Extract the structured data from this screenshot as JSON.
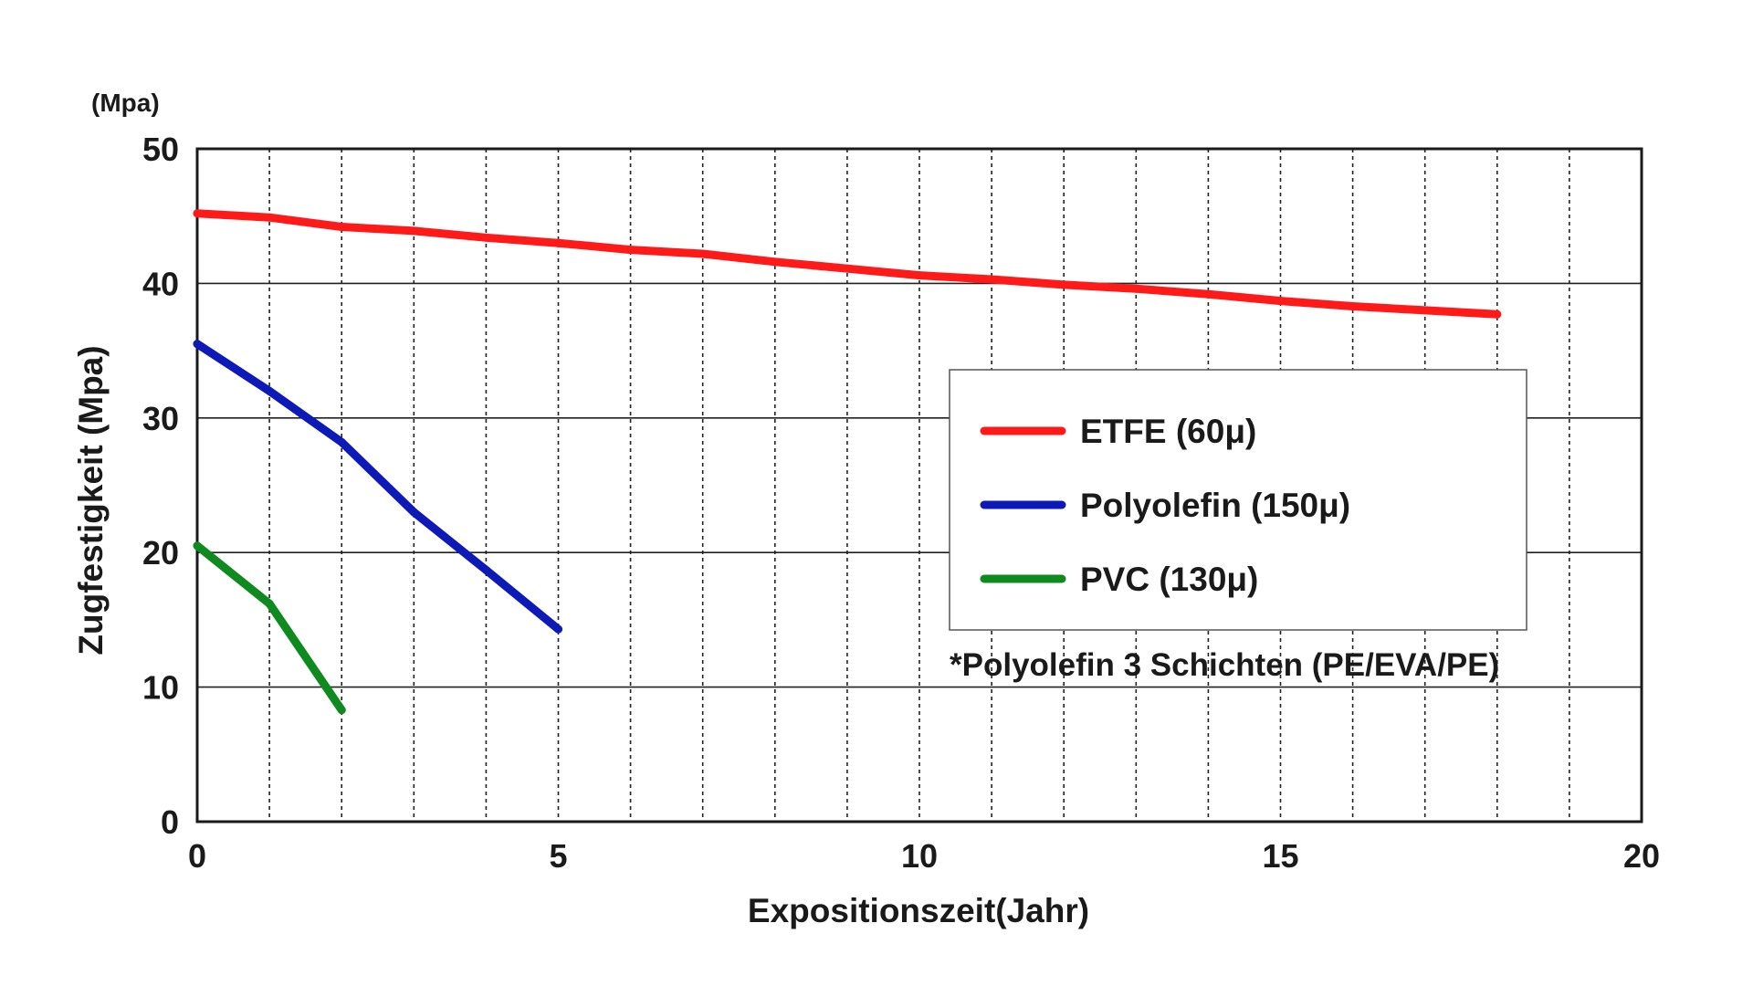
{
  "chart_data": {
    "type": "line",
    "unit_label": "(Mpa)",
    "xlabel": "Expositionszeit(Jahr)",
    "ylabel": "Zugfestigkeit (Mpa)",
    "xlim": [
      0,
      20
    ],
    "ylim": [
      0,
      50
    ],
    "x_ticks": [
      0,
      5,
      10,
      15,
      20
    ],
    "y_ticks": [
      0,
      10,
      20,
      30,
      40,
      50
    ],
    "x_tick_labels": [
      "0",
      "5",
      "10",
      "15",
      "20"
    ],
    "y_tick_labels": [
      "0",
      "10",
      "20",
      "30",
      "40",
      "50"
    ],
    "x_minor_gridlines": [
      1,
      2,
      3,
      4,
      5,
      6,
      7,
      8,
      9,
      10,
      11,
      12,
      13,
      14,
      15,
      16,
      17,
      18,
      19
    ],
    "y_gridlines": [
      10,
      20,
      30,
      40
    ],
    "grid": "vertical dotted, horizontal solid",
    "legend_position": "center-right",
    "series": [
      {
        "name": "ETFE (60μ)",
        "color": "#ff1a1a",
        "x": [
          0,
          1,
          2,
          3,
          4,
          5,
          6,
          7,
          8,
          9,
          10,
          11,
          12,
          13,
          14,
          15,
          16,
          17,
          18
        ],
        "values": [
          45.2,
          44.9,
          44.2,
          43.9,
          43.4,
          43.0,
          42.5,
          42.2,
          41.6,
          41.1,
          40.6,
          40.3,
          39.9,
          39.6,
          39.2,
          38.7,
          38.3,
          38.0,
          37.7
        ]
      },
      {
        "name": "Polyolefin (150μ)",
        "color": "#0d1ab8",
        "x": [
          0,
          1,
          2,
          3,
          4,
          5
        ],
        "values": [
          35.5,
          32.0,
          28.2,
          23.0,
          18.7,
          14.3
        ]
      },
      {
        "name": "PVC (130μ)",
        "color": "#0f8a1f",
        "x": [
          0,
          1,
          2
        ],
        "values": [
          20.5,
          16.2,
          8.3
        ]
      }
    ],
    "annotation": "*Polyolefin 3 Schichten (PE/EVA/PE)"
  }
}
